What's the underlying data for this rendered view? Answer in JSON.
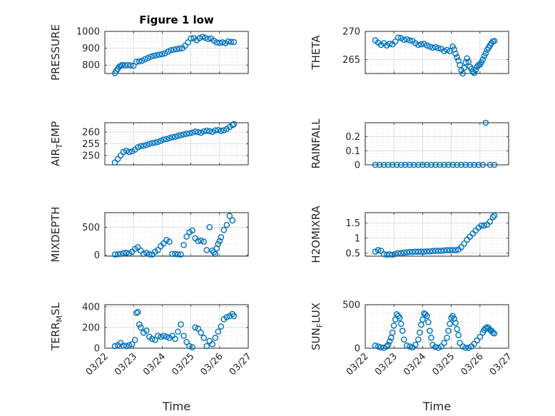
{
  "chart_data": [
    {
      "id": "pressure",
      "type": "scatter",
      "title": "Figure 1 low",
      "ylabel": "PRESSURE",
      "ylim": [
        750,
        1000
      ],
      "yticks": [
        800,
        900,
        1000
      ],
      "xlim": [
        0,
        5
      ],
      "xticks": [
        0,
        1,
        2,
        3,
        4,
        5
      ],
      "xticklabels": [],
      "x": [
        0.35,
        0.4,
        0.45,
        0.5,
        0.55,
        0.6,
        0.7,
        0.8,
        0.9,
        1.0,
        1.1,
        1.2,
        1.3,
        1.4,
        1.5,
        1.6,
        1.7,
        1.8,
        1.9,
        2.0,
        2.1,
        2.2,
        2.3,
        2.4,
        2.5,
        2.6,
        2.7,
        2.8,
        2.9,
        3.0,
        3.1,
        3.2,
        3.3,
        3.4,
        3.5,
        3.6,
        3.7,
        3.8,
        3.9,
        4.0,
        4.1,
        4.2,
        4.3,
        4.4,
        4.5
      ],
      "y": [
        752,
        765,
        778,
        790,
        795,
        800,
        798,
        800,
        798,
        796,
        820,
        822,
        826,
        835,
        842,
        850,
        855,
        858,
        862,
        865,
        870,
        880,
        888,
        892,
        895,
        898,
        900,
        915,
        935,
        958,
        960,
        948,
        960,
        968,
        962,
        955,
        958,
        945,
        935,
        932,
        935,
        930,
        940,
        938,
        937
      ]
    },
    {
      "id": "theta",
      "type": "scatter",
      "ylabel": "THETA",
      "ylim": [
        262.5,
        270
      ],
      "yticks": [
        265,
        270
      ],
      "xlim": [
        0,
        5
      ],
      "xticks": [
        0,
        1,
        2,
        3,
        4,
        5
      ],
      "xticklabels": [],
      "x": [
        0.35,
        0.45,
        0.55,
        0.65,
        0.75,
        0.85,
        0.95,
        1.05,
        1.15,
        1.25,
        1.35,
        1.45,
        1.55,
        1.65,
        1.75,
        1.85,
        1.95,
        2.05,
        2.15,
        2.25,
        2.35,
        2.45,
        2.55,
        2.65,
        2.75,
        2.85,
        2.95,
        3.05,
        3.1,
        3.15,
        3.2,
        3.25,
        3.3,
        3.35,
        3.4,
        3.45,
        3.5,
        3.55,
        3.6,
        3.65,
        3.7,
        3.75,
        3.8,
        3.85,
        3.9,
        3.95,
        4.0,
        4.05,
        4.1,
        4.15,
        4.2,
        4.25,
        4.3,
        4.35,
        4.4,
        4.45,
        4.5
      ],
      "y": [
        268.4,
        268.0,
        267.6,
        267.9,
        267.5,
        267.8,
        267.7,
        268.2,
        268.9,
        268.8,
        268.5,
        268.6,
        268.4,
        268.3,
        267.9,
        267.6,
        267.7,
        267.8,
        267.5,
        267.3,
        267.1,
        267.2,
        267.0,
        266.9,
        266.5,
        266.7,
        266.5,
        267.3,
        266.8,
        266.0,
        265.4,
        264.8,
        264.0,
        263.1,
        262.5,
        263.5,
        264.5,
        265.2,
        264.6,
        263.7,
        263.3,
        262.8,
        262.6,
        263.1,
        263.7,
        264.0,
        264.1,
        264.5,
        265.0,
        265.6,
        266.1,
        266.7,
        267.1,
        267.5,
        267.9,
        268.2,
        268.3
      ]
    },
    {
      "id": "air_temp",
      "type": "scatter",
      "ylabel": "AIR_TEMP",
      "ylim": [
        246,
        264
      ],
      "yticks": [
        250,
        255,
        260
      ],
      "xlim": [
        0,
        5
      ],
      "xticks": [
        0,
        1,
        2,
        3,
        4,
        5
      ],
      "xticklabels": [],
      "x": [
        0.35,
        0.45,
        0.55,
        0.65,
        0.75,
        0.85,
        0.95,
        1.05,
        1.15,
        1.25,
        1.35,
        1.45,
        1.55,
        1.65,
        1.75,
        1.85,
        1.95,
        2.05,
        2.15,
        2.25,
        2.35,
        2.45,
        2.55,
        2.65,
        2.75,
        2.85,
        2.95,
        3.05,
        3.15,
        3.25,
        3.35,
        3.45,
        3.55,
        3.65,
        3.75,
        3.85,
        3.95,
        4.05,
        4.15,
        4.25,
        4.35,
        4.45,
        4.5
      ],
      "y": [
        247.0,
        248.5,
        250.0,
        251.5,
        252.0,
        251.5,
        251.8,
        252.5,
        253.5,
        254.0,
        254.2,
        254.5,
        255.0,
        255.3,
        255.5,
        255.8,
        256.3,
        256.8,
        257.0,
        257.4,
        257.8,
        258.0,
        258.4,
        258.7,
        259.0,
        259.3,
        259.5,
        259.8,
        260.2,
        260.0,
        259.7,
        260.3,
        260.6,
        260.4,
        260.1,
        260.7,
        260.9,
        260.5,
        260.8,
        261.3,
        262.2,
        263.0,
        263.4
      ]
    },
    {
      "id": "rainfall",
      "type": "scatter",
      "ylabel": "RAINFALL",
      "ylim": [
        0,
        0.3
      ],
      "yticks": [
        0,
        0.1,
        0.2
      ],
      "xlim": [
        0,
        5
      ],
      "xticks": [
        0,
        1,
        2,
        3,
        4,
        5
      ],
      "xticklabels": [],
      "x": [
        0.35,
        0.5,
        0.65,
        0.8,
        0.95,
        1.1,
        1.25,
        1.4,
        1.55,
        1.7,
        1.85,
        2.0,
        2.15,
        2.3,
        2.45,
        2.6,
        2.75,
        2.9,
        3.05,
        3.2,
        3.35,
        3.5,
        3.65,
        3.8,
        3.95,
        4.1,
        4.2,
        4.35,
        4.5
      ],
      "y": [
        0,
        0,
        0,
        0,
        0,
        0,
        0,
        0,
        0,
        0,
        0,
        0,
        0,
        0,
        0,
        0,
        0,
        0,
        0,
        0,
        0,
        0,
        0,
        0,
        0,
        0,
        0.3,
        0,
        0
      ]
    },
    {
      "id": "mixdepth",
      "type": "scatter",
      "ylabel": "MIXDEPTH",
      "ylim": [
        -20,
        760
      ],
      "yticks": [
        0,
        500
      ],
      "xlim": [
        0,
        5
      ],
      "xticks": [
        0,
        1,
        2,
        3,
        4,
        5
      ],
      "xticklabels": [],
      "x": [
        0.35,
        0.45,
        0.55,
        0.65,
        0.75,
        0.85,
        0.95,
        1.05,
        1.15,
        1.25,
        1.35,
        1.45,
        1.55,
        1.65,
        1.75,
        1.85,
        1.95,
        2.05,
        2.15,
        2.25,
        2.35,
        2.45,
        2.55,
        2.65,
        2.75,
        2.85,
        2.95,
        3.05,
        3.15,
        3.25,
        3.35,
        3.45,
        3.55,
        3.65,
        3.75,
        3.8,
        3.85,
        3.9,
        3.95,
        4.0,
        4.05,
        4.15,
        4.25,
        4.35,
        4.45
      ],
      "y": [
        10,
        15,
        20,
        35,
        40,
        30,
        60,
        110,
        140,
        80,
        20,
        40,
        15,
        10,
        60,
        90,
        160,
        210,
        270,
        240,
        20,
        20,
        15,
        10,
        180,
        330,
        410,
        440,
        300,
        250,
        260,
        240,
        90,
        500,
        80,
        50,
        20,
        120,
        200,
        250,
        320,
        450,
        540,
        700,
        620
      ]
    },
    {
      "id": "h2omixra",
      "type": "scatter",
      "ylabel": "H2OMIXRA",
      "ylim": [
        0.4,
        1.85
      ],
      "yticks": [
        0.5,
        1,
        1.5
      ],
      "xlim": [
        0,
        5
      ],
      "xticks": [
        0,
        1,
        2,
        3,
        4,
        5
      ],
      "xticklabels": [],
      "x": [
        0.35,
        0.45,
        0.55,
        0.65,
        0.75,
        0.85,
        0.95,
        1.05,
        1.15,
        1.25,
        1.35,
        1.45,
        1.55,
        1.65,
        1.75,
        1.85,
        1.95,
        2.05,
        2.15,
        2.25,
        2.35,
        2.45,
        2.55,
        2.65,
        2.75,
        2.85,
        2.95,
        3.05,
        3.15,
        3.25,
        3.35,
        3.45,
        3.55,
        3.65,
        3.75,
        3.85,
        3.95,
        4.05,
        4.15,
        4.25,
        4.35,
        4.45,
        4.5
      ],
      "y": [
        0.55,
        0.6,
        0.58,
        0.47,
        0.45,
        0.46,
        0.45,
        0.47,
        0.5,
        0.5,
        0.52,
        0.53,
        0.54,
        0.54,
        0.55,
        0.55,
        0.55,
        0.55,
        0.56,
        0.56,
        0.57,
        0.58,
        0.58,
        0.58,
        0.59,
        0.6,
        0.6,
        0.6,
        0.6,
        0.62,
        0.7,
        0.82,
        0.95,
        1.05,
        1.15,
        1.25,
        1.35,
        1.42,
        1.42,
        1.45,
        1.55,
        1.7,
        1.75
      ]
    },
    {
      "id": "terr_msl",
      "type": "scatter",
      "ylabel": "TERR_MSL",
      "ylim": [
        0,
        420
      ],
      "yticks": [
        0,
        200,
        400
      ],
      "xlim": [
        0,
        5
      ],
      "xticks": [
        0,
        1,
        2,
        3,
        4,
        5
      ],
      "xticklabels": [
        "03/22",
        "03/23",
        "03/24",
        "03/25",
        "03/26",
        "03/27"
      ],
      "xlabel": "Time",
      "x": [
        0.35,
        0.45,
        0.55,
        0.65,
        0.75,
        0.85,
        0.95,
        1.05,
        1.1,
        1.15,
        1.2,
        1.25,
        1.35,
        1.45,
        1.55,
        1.65,
        1.75,
        1.85,
        1.95,
        2.05,
        2.15,
        2.25,
        2.35,
        2.45,
        2.55,
        2.65,
        2.75,
        2.85,
        2.95,
        3.05,
        3.15,
        3.25,
        3.35,
        3.45,
        3.55,
        3.65,
        3.75,
        3.85,
        3.95,
        4.05,
        4.15,
        4.25,
        4.35,
        4.45,
        4.5
      ],
      "y": [
        20,
        30,
        50,
        25,
        20,
        30,
        40,
        80,
        340,
        350,
        230,
        200,
        150,
        170,
        110,
        90,
        80,
        120,
        110,
        120,
        110,
        100,
        120,
        90,
        160,
        230,
        120,
        60,
        20,
        10,
        200,
        190,
        150,
        100,
        20,
        70,
        40,
        100,
        160,
        210,
        280,
        300,
        310,
        330,
        310
      ]
    },
    {
      "id": "sun_flux",
      "type": "scatter",
      "ylabel": "SUN_FLUX",
      "ylim": [
        0,
        500
      ],
      "yticks": [
        0,
        500
      ],
      "xlim": [
        0,
        5
      ],
      "xticks": [
        0,
        1,
        2,
        3,
        4,
        5
      ],
      "xticklabels": [
        "03/22",
        "03/23",
        "03/24",
        "03/25",
        "03/26",
        "03/27"
      ],
      "xlabel": "Time",
      "x": [
        0.35,
        0.45,
        0.55,
        0.65,
        0.75,
        0.8,
        0.85,
        0.9,
        0.95,
        1.0,
        1.05,
        1.1,
        1.15,
        1.2,
        1.25,
        1.3,
        1.35,
        1.45,
        1.55,
        1.65,
        1.75,
        1.85,
        1.9,
        1.95,
        2.0,
        2.05,
        2.1,
        2.15,
        2.2,
        2.25,
        2.3,
        2.35,
        2.45,
        2.55,
        2.65,
        2.75,
        2.85,
        2.9,
        2.95,
        3.0,
        3.05,
        3.1,
        3.15,
        3.2,
        3.25,
        3.3,
        3.4,
        3.5,
        3.6,
        3.7,
        3.8,
        3.9,
        4.0,
        4.1,
        4.15,
        4.2,
        4.25,
        4.3,
        4.35,
        4.4,
        4.45,
        4.5
      ],
      "y": [
        30,
        20,
        10,
        5,
        20,
        40,
        80,
        120,
        180,
        260,
        330,
        390,
        370,
        350,
        280,
        200,
        100,
        30,
        20,
        10,
        40,
        100,
        180,
        270,
        330,
        400,
        390,
        370,
        300,
        200,
        120,
        40,
        15,
        5,
        20,
        60,
        120,
        200,
        280,
        350,
        370,
        340,
        290,
        220,
        150,
        60,
        20,
        5,
        5,
        20,
        50,
        90,
        130,
        180,
        210,
        230,
        240,
        230,
        210,
        200,
        180,
        170
      ]
    }
  ]
}
